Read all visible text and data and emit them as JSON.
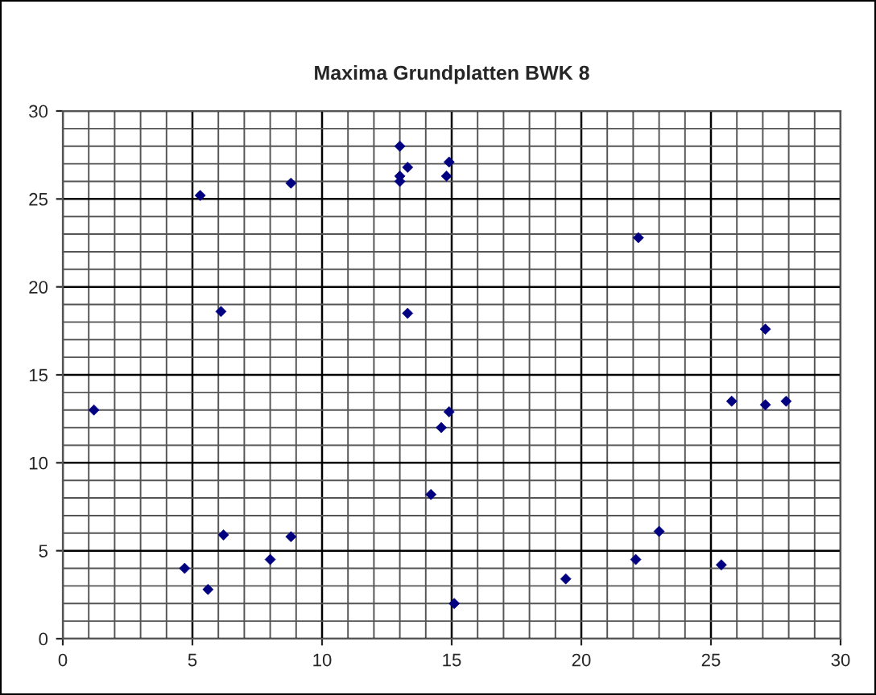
{
  "chart_data": {
    "type": "scatter",
    "title": "Maxima Grundplatten BWK 8",
    "x": [
      1.2,
      4.7,
      5.3,
      5.6,
      6.1,
      6.2,
      8.0,
      8.8,
      8.8,
      13.0,
      13.0,
      13.0,
      13.3,
      13.3,
      14.2,
      14.6,
      14.9,
      14.8,
      14.9,
      15.1,
      19.4,
      22.2,
      22.1,
      23.0,
      25.4,
      25.8,
      27.1,
      27.1,
      27.9
    ],
    "values": [
      13.0,
      4.0,
      25.2,
      2.8,
      18.6,
      5.9,
      4.5,
      25.9,
      5.8,
      28.0,
      26.3,
      26.0,
      26.8,
      18.5,
      8.2,
      12.0,
      12.9,
      26.3,
      27.1,
      2.0,
      3.4,
      22.8,
      4.5,
      6.1,
      4.2,
      13.5,
      17.6,
      13.3,
      13.5
    ],
    "color": "#000080",
    "marker": "diamond",
    "xlim": [
      0,
      30
    ],
    "ylim": [
      0,
      30
    ],
    "xticks": [
      0,
      5,
      10,
      15,
      20,
      25,
      30
    ],
    "yticks": [
      0,
      5,
      10,
      15,
      20,
      25,
      30
    ],
    "grid": true,
    "legend": false
  }
}
